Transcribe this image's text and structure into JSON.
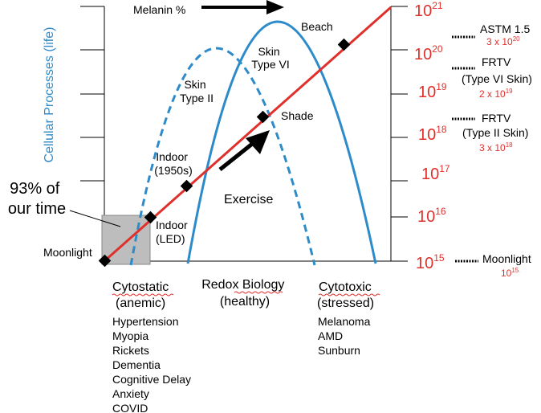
{
  "axes": {
    "left_label": "Cellular Processes (life)",
    "right_ticks": [
      {
        "base": "10",
        "exp": "21"
      },
      {
        "base": "10",
        "exp": "20"
      },
      {
        "base": "10",
        "exp": "19"
      },
      {
        "base": "10",
        "exp": "18"
      },
      {
        "base": "10",
        "exp": "17"
      },
      {
        "base": "10",
        "exp": "16"
      },
      {
        "base": "10",
        "exp": "15"
      }
    ]
  },
  "arrows": {
    "melanin_label": "Melanin %",
    "exercise_label": "Exercise"
  },
  "curves": {
    "skin_type_ii": [
      "Skin",
      "Type II"
    ],
    "skin_type_vi": [
      "Skin",
      "Type VI"
    ]
  },
  "points": {
    "moonlight": "Moonlight",
    "indoor_led": [
      "Indoor",
      "(LED)"
    ],
    "indoor_1950s": [
      "Indoor",
      "(1950s)"
    ],
    "shade": "Shade",
    "beach": "Beach"
  },
  "time_note": [
    "93% of",
    "our time"
  ],
  "references": [
    {
      "lines": [
        "ASTM 1.5"
      ],
      "value": "3 x 10",
      "exp": "20"
    },
    {
      "lines": [
        "FRTV",
        "(Type VI Skin)"
      ],
      "value": "2 x 10",
      "exp": "19"
    },
    {
      "lines": [
        "FRTV",
        "(Type II Skin)"
      ],
      "value": "3 x 10",
      "exp": "18"
    },
    {
      "lines": [
        "Moonlight"
      ],
      "value": "10",
      "exp": "15"
    }
  ],
  "zones": {
    "cytostatic": {
      "title": [
        "Cytostatic",
        "(anemic)"
      ],
      "items": [
        "Hypertension",
        "Myopia",
        "Rickets",
        "Dementia",
        "Cognitive Delay",
        "Anxiety",
        "COVID"
      ]
    },
    "redox": {
      "title": [
        "Redox Biology",
        "(healthy)"
      ],
      "items": []
    },
    "cytotoxic": {
      "title": [
        "Cytotoxic",
        "(stressed)"
      ],
      "items": [
        "Melanoma",
        "AMD",
        "Sunburn"
      ]
    }
  },
  "colors": {
    "red_line": "#e0302c",
    "blue_curve": "#2e8bc9",
    "highlight_box": "#bdbdbd"
  }
}
